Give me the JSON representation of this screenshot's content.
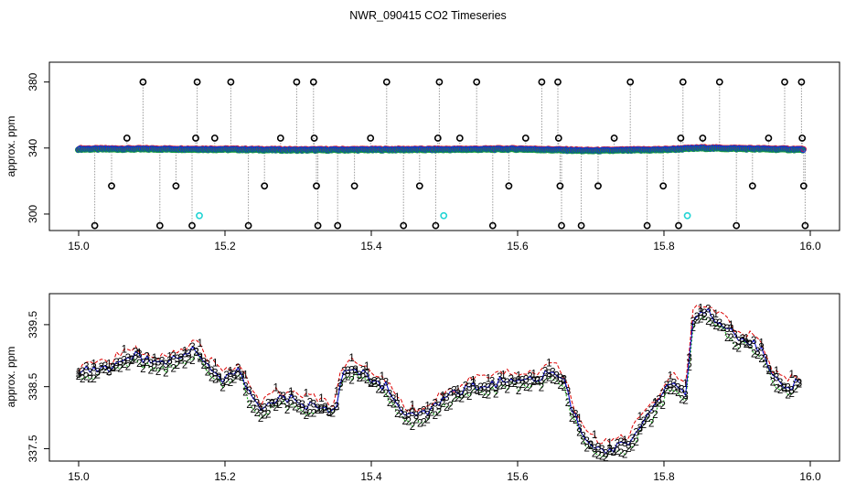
{
  "title": "NWR_090415  CO2 Timeseries",
  "chart_data": [
    {
      "type": "scatter",
      "ylabel": "approx. ppm",
      "xlabel": "",
      "xlim": [
        14.96,
        16.04
      ],
      "ylim": [
        290,
        392
      ],
      "xticks": [
        15.0,
        15.2,
        15.4,
        15.6,
        15.8,
        16.0
      ],
      "xtick_labels": [
        "15.0",
        "15.2",
        "15.4",
        "15.6",
        "15.8",
        "16.0"
      ],
      "yticks": [
        300,
        340,
        380
      ],
      "ytick_labels": [
        "300",
        "340",
        "380"
      ],
      "baseline": [
        {
          "x": 15.0,
          "y": 339.4
        },
        {
          "x": 15.1,
          "y": 339.4
        },
        {
          "x": 15.2,
          "y": 339.2
        },
        {
          "x": 15.3,
          "y": 338.8
        },
        {
          "x": 15.4,
          "y": 339.0
        },
        {
          "x": 15.5,
          "y": 339.1
        },
        {
          "x": 15.6,
          "y": 339.4
        },
        {
          "x": 15.7,
          "y": 338.4
        },
        {
          "x": 15.8,
          "y": 339.0
        },
        {
          "x": 15.85,
          "y": 340.0
        },
        {
          "x": 16.0,
          "y": 339.0
        }
      ],
      "black_outliers": [
        {
          "x": 15.022,
          "y": 293
        },
        {
          "x": 15.045,
          "y": 317
        },
        {
          "x": 15.066,
          "y": 346
        },
        {
          "x": 15.088,
          "y": 380
        },
        {
          "x": 15.111,
          "y": 293
        },
        {
          "x": 15.133,
          "y": 317
        },
        {
          "x": 15.155,
          "y": 293
        },
        {
          "x": 15.16,
          "y": 346
        },
        {
          "x": 15.162,
          "y": 380
        },
        {
          "x": 15.186,
          "y": 346
        },
        {
          "x": 15.208,
          "y": 380
        },
        {
          "x": 15.232,
          "y": 293
        },
        {
          "x": 15.254,
          "y": 317
        },
        {
          "x": 15.276,
          "y": 346
        },
        {
          "x": 15.298,
          "y": 380
        },
        {
          "x": 15.321,
          "y": 380
        },
        {
          "x": 15.322,
          "y": 346
        },
        {
          "x": 15.325,
          "y": 317
        },
        {
          "x": 15.327,
          "y": 293
        },
        {
          "x": 15.354,
          "y": 293
        },
        {
          "x": 15.377,
          "y": 317
        },
        {
          "x": 15.399,
          "y": 346
        },
        {
          "x": 15.421,
          "y": 380
        },
        {
          "x": 15.444,
          "y": 293
        },
        {
          "x": 15.466,
          "y": 317
        },
        {
          "x": 15.488,
          "y": 293
        },
        {
          "x": 15.491,
          "y": 346
        },
        {
          "x": 15.493,
          "y": 380
        },
        {
          "x": 15.521,
          "y": 346
        },
        {
          "x": 15.544,
          "y": 380
        },
        {
          "x": 15.566,
          "y": 293
        },
        {
          "x": 15.588,
          "y": 317
        },
        {
          "x": 15.611,
          "y": 346
        },
        {
          "x": 15.633,
          "y": 380
        },
        {
          "x": 15.655,
          "y": 380
        },
        {
          "x": 15.656,
          "y": 346
        },
        {
          "x": 15.658,
          "y": 317
        },
        {
          "x": 15.66,
          "y": 293
        },
        {
          "x": 15.687,
          "y": 293
        },
        {
          "x": 15.71,
          "y": 317
        },
        {
          "x": 15.732,
          "y": 346
        },
        {
          "x": 15.754,
          "y": 380
        },
        {
          "x": 15.777,
          "y": 293
        },
        {
          "x": 15.799,
          "y": 317
        },
        {
          "x": 15.82,
          "y": 293
        },
        {
          "x": 15.823,
          "y": 346
        },
        {
          "x": 15.826,
          "y": 380
        },
        {
          "x": 15.853,
          "y": 346
        },
        {
          "x": 15.876,
          "y": 380
        },
        {
          "x": 15.899,
          "y": 293
        },
        {
          "x": 15.921,
          "y": 317
        },
        {
          "x": 15.943,
          "y": 346
        },
        {
          "x": 15.965,
          "y": 380
        },
        {
          "x": 15.988,
          "y": 380
        },
        {
          "x": 15.989,
          "y": 346
        },
        {
          "x": 15.991,
          "y": 317
        },
        {
          "x": 15.993,
          "y": 293
        }
      ],
      "cyan_points": [
        {
          "x": 15.165,
          "y": 299
        },
        {
          "x": 15.499,
          "y": 299
        },
        {
          "x": 15.832,
          "y": 299
        }
      ]
    },
    {
      "type": "line",
      "ylabel": "approx. ppm",
      "xlabel": "",
      "xlim": [
        14.96,
        16.04
      ],
      "ylim": [
        337.3,
        340.0
      ],
      "xticks": [
        15.0,
        15.2,
        15.4,
        15.6,
        15.8,
        16.0
      ],
      "xtick_labels": [
        "15.0",
        "15.2",
        "15.4",
        "15.6",
        "15.8",
        "16.0"
      ],
      "yticks": [
        337.5,
        338.5,
        339.5
      ],
      "ytick_labels": [
        "337.5",
        "338.5",
        "339.5"
      ],
      "series_markers": [
        "1",
        "2",
        "3"
      ],
      "series": [
        {
          "name": "1",
          "color": "#dd0000",
          "offset": 0.12
        },
        {
          "name": "2",
          "color": "#00aa00",
          "offset": -0.1
        },
        {
          "name": "3",
          "color": "#0000cc",
          "offset": 0.0
        }
      ],
      "x": [
        15.0,
        15.02,
        15.04,
        15.06,
        15.08,
        15.1,
        15.12,
        15.14,
        15.16,
        15.18,
        15.2,
        15.22,
        15.235,
        15.25,
        15.27,
        15.29,
        15.31,
        15.33,
        15.35,
        15.36,
        15.38,
        15.4,
        15.42,
        15.44,
        15.46,
        15.48,
        15.5,
        15.52,
        15.54,
        15.56,
        15.58,
        15.6,
        15.62,
        15.64,
        15.66,
        15.675,
        15.69,
        15.71,
        15.73,
        15.75,
        15.77,
        15.79,
        15.81,
        15.83,
        15.84,
        15.86,
        15.88,
        15.9,
        15.92,
        15.935,
        15.95,
        15.97,
        15.99
      ],
      "values": [
        338.7,
        338.8,
        338.8,
        338.9,
        339.0,
        338.9,
        338.9,
        339.0,
        339.1,
        338.8,
        338.6,
        338.8,
        338.3,
        338.1,
        338.3,
        338.3,
        338.2,
        338.2,
        338.1,
        338.7,
        338.8,
        338.6,
        338.5,
        338.1,
        338.0,
        338.1,
        338.3,
        338.4,
        338.5,
        338.5,
        338.6,
        338.6,
        338.6,
        338.7,
        338.7,
        338.1,
        337.7,
        337.5,
        337.5,
        337.6,
        337.9,
        338.2,
        338.6,
        338.4,
        339.6,
        339.7,
        339.5,
        339.3,
        339.2,
        339.1,
        338.6,
        338.5,
        338.6
      ]
    }
  ]
}
